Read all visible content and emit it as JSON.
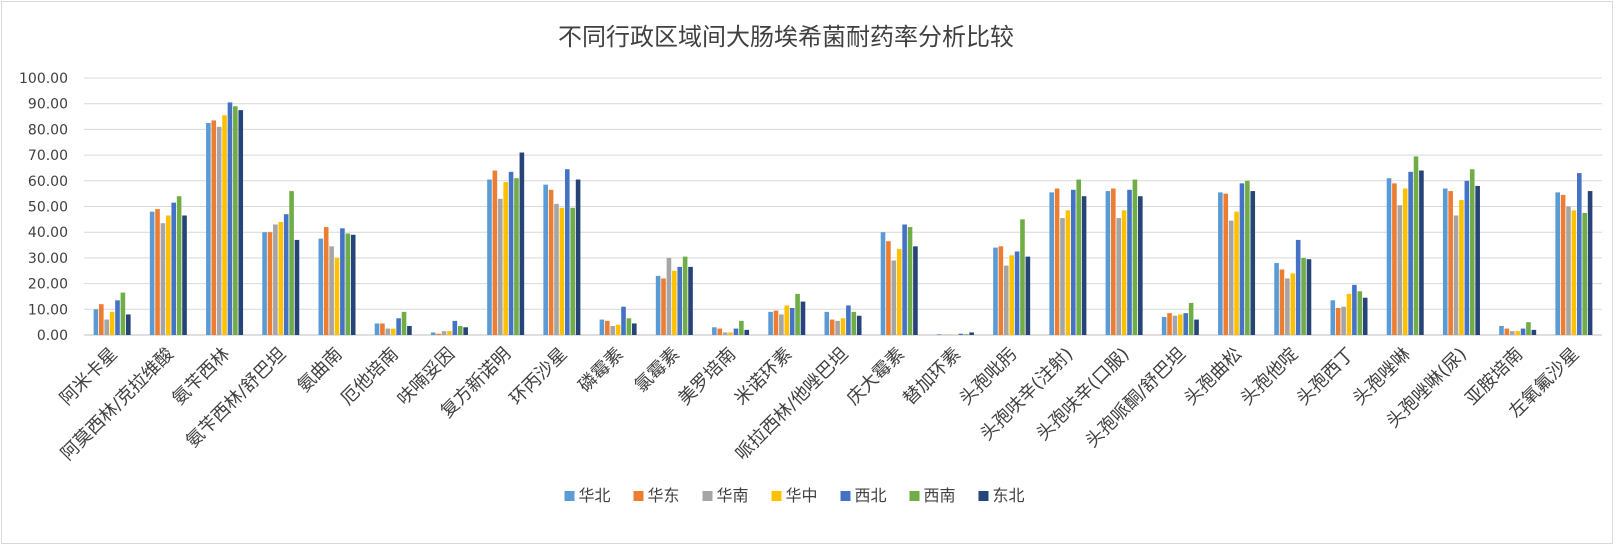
{
  "chart_data": {
    "type": "bar",
    "title": "不同行政区域间大肠埃希菌耐药率分析比较",
    "xlabel": "",
    "ylabel": "",
    "ylim": [
      0,
      100
    ],
    "y_ticks": [
      "0.00",
      "10.00",
      "20.00",
      "30.00",
      "40.00",
      "50.00",
      "60.00",
      "70.00",
      "80.00",
      "90.00",
      "100.00"
    ],
    "grid": true,
    "legend_position": "bottom",
    "categories": [
      "阿米卡星",
      "阿莫西林/克拉维酸",
      "氨苄西林",
      "氨苄西林/舒巴坦",
      "氨曲南",
      "厄他培南",
      "呋喃妥因",
      "复方新诺明",
      "环丙沙星",
      "磷霉素",
      "氯霉素",
      "美罗培南",
      "米诺环素",
      "哌拉西林/他唑巴坦",
      "庆大霉素",
      "替加环素",
      "头孢吡肟",
      "头孢呋辛(注射)",
      "头孢呋辛(口服)",
      "头孢哌酮/舒巴坦",
      "头孢曲松",
      "头孢他啶",
      "头孢西丁",
      "头孢唑啉",
      "头孢唑啉(尿)",
      "亚胺培南",
      "左氧氟沙星"
    ],
    "series": [
      {
        "name": "华北",
        "color": "#5B9BD5",
        "values": [
          10,
          48,
          82.5,
          40,
          37.5,
          4.5,
          1,
          60.5,
          58.5,
          6,
          23,
          3,
          9,
          9,
          40,
          0.3,
          34,
          55.5,
          56,
          7,
          55.5,
          28,
          13.5,
          61,
          57,
          3.5,
          55.5
        ]
      },
      {
        "name": "华东",
        "color": "#ED7D31",
        "values": [
          12,
          49,
          83.5,
          40,
          42,
          4.5,
          0.5,
          64,
          56.5,
          5.5,
          22,
          2.5,
          9.5,
          6,
          36.5,
          0.1,
          34.5,
          57,
          57,
          8.5,
          55,
          25.5,
          10.5,
          59,
          56,
          2.5,
          54.5
        ]
      },
      {
        "name": "华南",
        "color": "#A5A5A5",
        "values": [
          6,
          43.5,
          81,
          43,
          34.5,
          2.5,
          1.5,
          53,
          51,
          3.5,
          30,
          1,
          8,
          5.5,
          29,
          0.2,
          27,
          45.5,
          45.5,
          7.5,
          44.5,
          22,
          11,
          50.5,
          46.5,
          1.5,
          50
        ]
      },
      {
        "name": "华中",
        "color": "#FFC000",
        "values": [
          9,
          46.5,
          85.5,
          44,
          30,
          2.5,
          1.5,
          59.5,
          49.5,
          4,
          25,
          1,
          11.5,
          6.5,
          33.5,
          0.1,
          31,
          48.5,
          48.5,
          8,
          48,
          24,
          16,
          57,
          52.5,
          1.5,
          48.5
        ]
      },
      {
        "name": "西北",
        "color": "#4472C4",
        "values": [
          13.5,
          51.5,
          90.5,
          47,
          41.5,
          6.5,
          5.5,
          63.5,
          64.5,
          11,
          26.5,
          2.5,
          10.5,
          11.5,
          43,
          0.5,
          32.5,
          56.5,
          56.5,
          8.5,
          59,
          37,
          19.5,
          63.5,
          60,
          2.5,
          63
        ]
      },
      {
        "name": "西南",
        "color": "#70AD47",
        "values": [
          16.5,
          54,
          89,
          56,
          39.5,
          9,
          3.5,
          61,
          49.5,
          6.5,
          30.5,
          5.5,
          16,
          9,
          42,
          0.3,
          45,
          60.5,
          60.5,
          12.5,
          60,
          30,
          17,
          69.5,
          64.5,
          5,
          47.5
        ]
      },
      {
        "name": "东北",
        "color": "#264478",
        "values": [
          8,
          46.5,
          87.5,
          37,
          39,
          3.5,
          3,
          71,
          60.5,
          4.5,
          26.5,
          2,
          13,
          7.5,
          34.5,
          1,
          30.5,
          54,
          54,
          6,
          56,
          29.5,
          14.5,
          64,
          58,
          2,
          56
        ]
      }
    ]
  }
}
